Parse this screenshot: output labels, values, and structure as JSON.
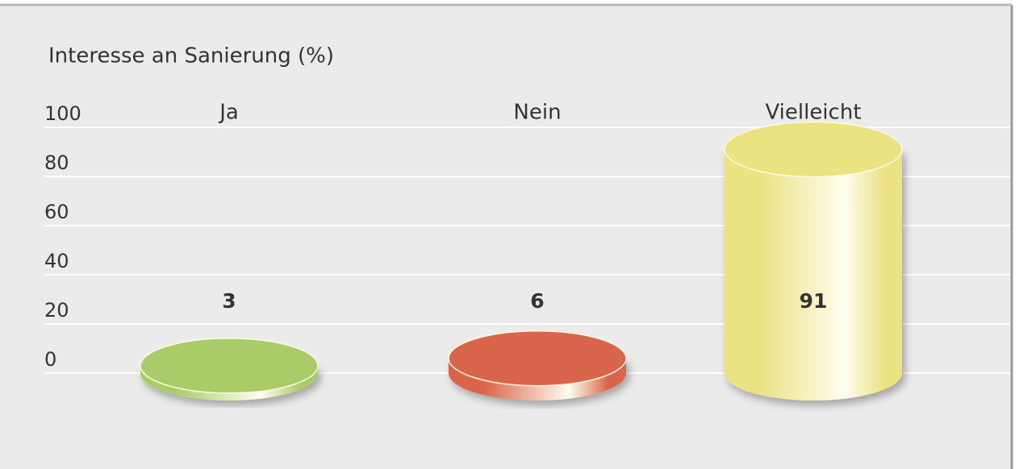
{
  "chart_data": {
    "type": "cylinder",
    "title": "Interesse an Sanierung (%)",
    "categories": [
      "Ja",
      "Nein",
      "Vielleicht"
    ],
    "values": [
      3,
      6,
      91
    ],
    "colors": [
      "#a9cc68",
      "#d9654c",
      "#ebe282"
    ],
    "ylim": [
      0,
      100
    ],
    "yticks": [
      0,
      20,
      40,
      60,
      80,
      100
    ],
    "grid": true
  }
}
